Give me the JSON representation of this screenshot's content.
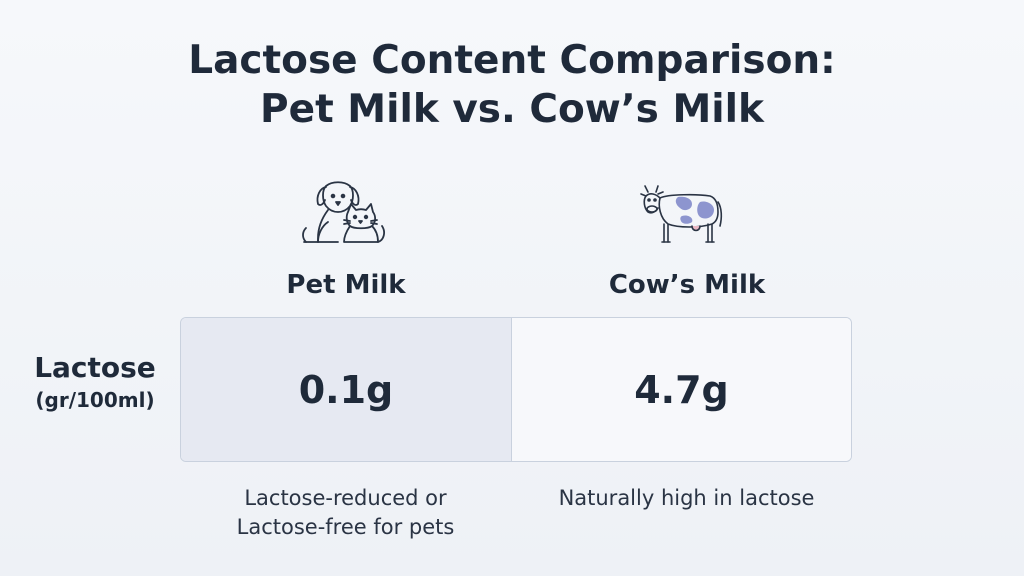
{
  "title": {
    "line1": "Lactose Content Comparison:",
    "line2": "Pet Milk vs. Cow’s Milk"
  },
  "row_label": {
    "main": "Lactose",
    "unit": "(gr/100ml)"
  },
  "icons": {
    "pet": "dog-and-cat-icon",
    "cow": "cow-icon"
  },
  "colors": {
    "pet_cell": "#e6e9f2",
    "cow_cell": "#f7f8fb",
    "cow_spots": "#8d95cf",
    "text": "#1f2a3a",
    "border": "#c9d1de"
  },
  "chart_data": {
    "type": "table",
    "columns": [
      "Pet Milk",
      "Cow’s Milk"
    ],
    "rows": [
      {
        "label": "Lactose (gr/100ml)",
        "values": [
          "0.1g",
          "4.7g"
        ]
      }
    ],
    "values": [
      0.1,
      4.7
    ],
    "notes": [
      [
        "Lactose-reduced or",
        "Lactose-free for pets"
      ],
      [
        "Naturally high in lactose"
      ]
    ]
  }
}
